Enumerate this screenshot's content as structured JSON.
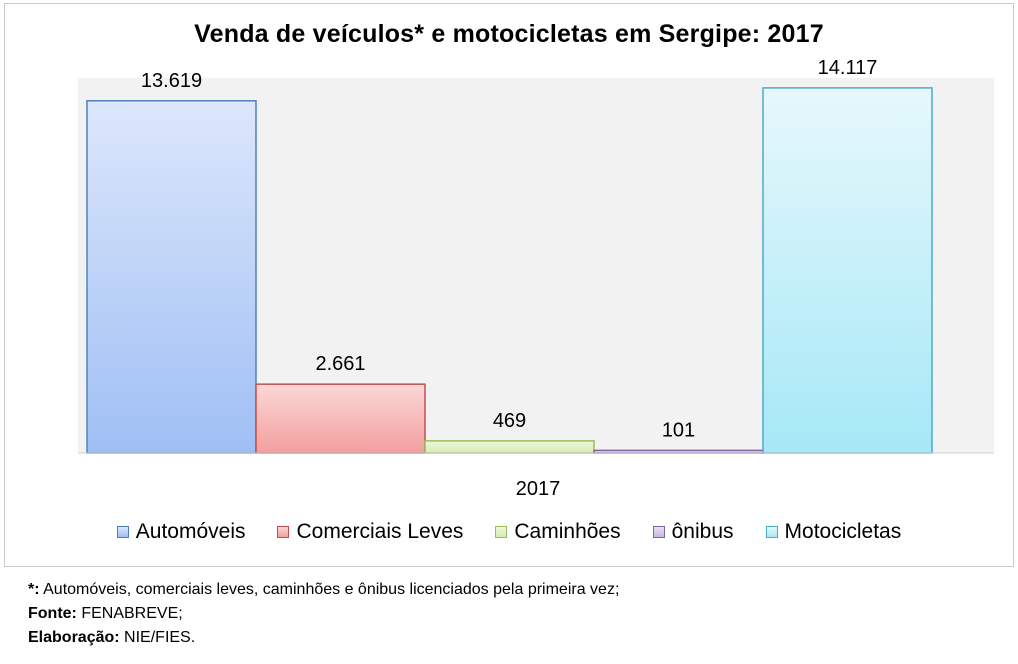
{
  "chart_data": {
    "type": "bar",
    "title": "Venda de veículos* e motocicletas em Sergipe: 2017",
    "categories": [
      "2017"
    ],
    "series": [
      {
        "name": "Automóveis",
        "values": [
          13619
        ],
        "label": "13.619",
        "color": "#4f81bd",
        "fill_top": "#dce7fb",
        "fill_bottom": "#9fbff4"
      },
      {
        "name": "Comerciais Leves",
        "values": [
          2661
        ],
        "label": "2.661",
        "color": "#c0504d",
        "fill_top": "#fbd7d7",
        "fill_bottom": "#f49f9f"
      },
      {
        "name": "Caminhões",
        "values": [
          469
        ],
        "label": "469",
        "color": "#9bbb59",
        "fill_top": "#eef7dc",
        "fill_bottom": "#d4ecb0"
      },
      {
        "name": "ônibus",
        "values": [
          101
        ],
        "label": "101",
        "color": "#8064a2",
        "fill_top": "#e8e0f2",
        "fill_bottom": "#c8b8e0"
      },
      {
        "name": "Motocicletas",
        "values": [
          14117
        ],
        "label": "14.117",
        "color": "#4bacc6",
        "fill_top": "#e6f8fc",
        "fill_bottom": "#a6e8f6"
      }
    ],
    "ylim": [
      0,
      14500
    ],
    "grid": false,
    "legend": "bottom",
    "plot_background": "#f2f2f2"
  },
  "notes": {
    "note1_label": "*:",
    "note1_text": "Automóveis, comerciais leves, caminhões e ônibus licenciados pela primeira vez;",
    "note2_label": "Fonte:",
    "note2_text": "FENABREVE;",
    "note3_label": "Elaboração:",
    "note3_text": "NIE/FIES."
  }
}
